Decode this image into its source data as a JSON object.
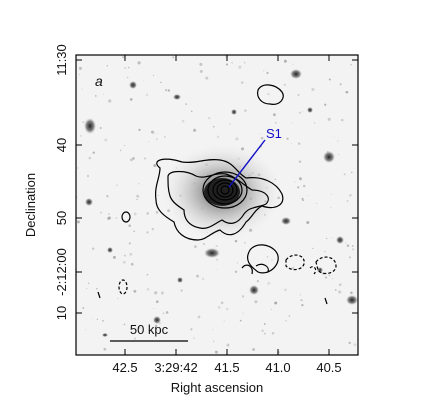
{
  "panel_label": "a",
  "annotation": {
    "label": "S1",
    "color": "#1010c8"
  },
  "scale_bar": {
    "label": "50 kpc"
  },
  "x_axis": {
    "title": "Right ascension",
    "tick_labels": [
      "42.5",
      "3:29:42",
      "41.5",
      "41.0",
      "40.5"
    ]
  },
  "y_axis": {
    "title": "Declination",
    "tick_labels": [
      "11:30",
      "40",
      "50",
      "-2:12:00",
      "10"
    ]
  },
  "colors": {
    "frame": "#000000",
    "contour": "#000000",
    "marker": "#1010c8",
    "sky_background": "#f3f3f3"
  }
}
